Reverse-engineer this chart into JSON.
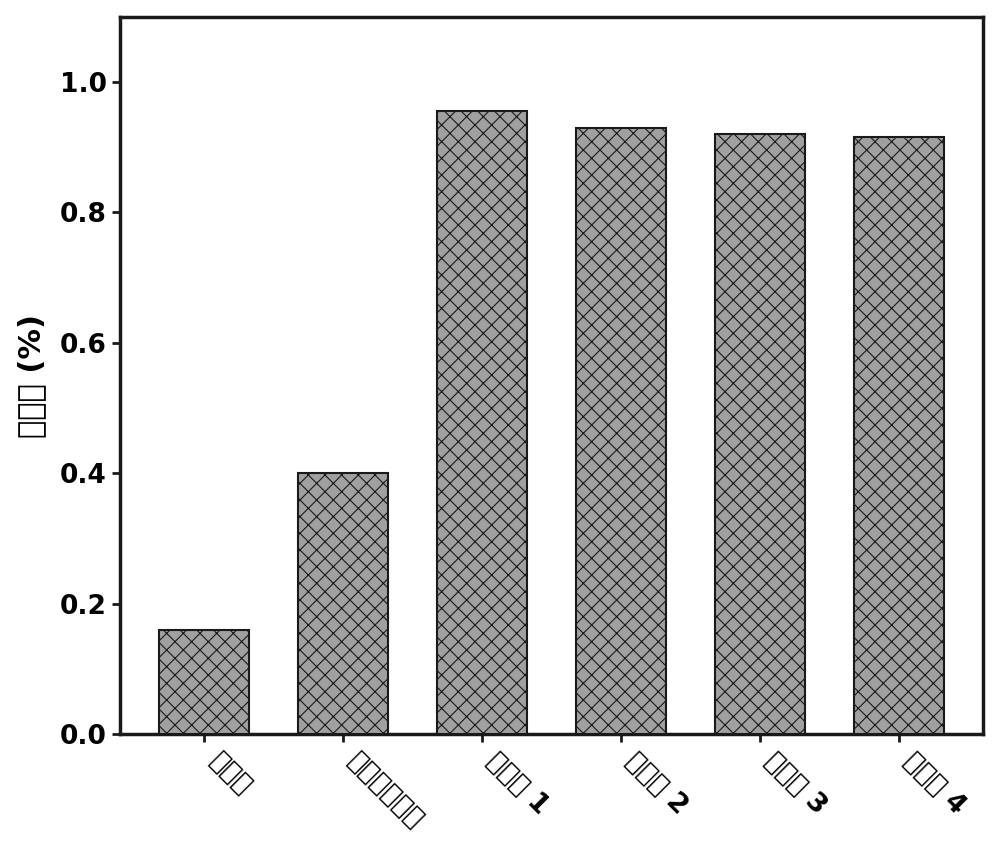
{
  "categories": [
    "未活化",
    "单纯离子交换",
    "实施例 1",
    "实施例 2",
    "实施例 3",
    "实施例 4"
  ],
  "values": [
    0.16,
    0.4,
    0.955,
    0.93,
    0.92,
    0.915
  ],
  "bar_color": "#a0a0a0",
  "bar_edgecolor": "#1a1a1a",
  "hatch": "xx",
  "ylabel": "去除率 (%)",
  "ylim": [
    0.0,
    1.1
  ],
  "yticks": [
    0.0,
    0.2,
    0.4,
    0.6,
    0.8,
    1.0
  ],
  "ylabel_fontsize": 22,
  "tick_fontsize": 19,
  "bar_width": 0.65,
  "figsize": [
    10,
    8.5
  ],
  "dpi": 100,
  "spine_linewidth": 2.5,
  "tick_linewidth": 2.0,
  "xtick_rotation": -45,
  "hatch_linewidth": 0.8
}
